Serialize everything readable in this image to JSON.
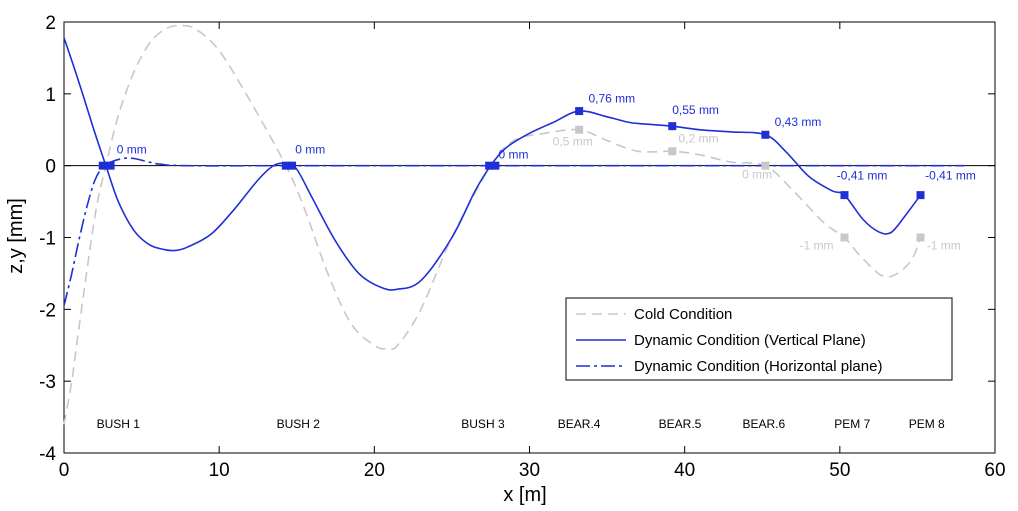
{
  "chart_data": {
    "type": "line",
    "xlabel": "x [m]",
    "ylabel": "z,y [mm]",
    "xlim": [
      0,
      60
    ],
    "ylim": [
      -4,
      2
    ],
    "xticks": [
      0,
      10,
      20,
      30,
      40,
      50,
      60
    ],
    "yticks": [
      -4,
      -3,
      -2,
      -1,
      0,
      1,
      2
    ],
    "grid": false,
    "legend_position": "bottom-right",
    "colors": {
      "cold": "#c8c8c8",
      "dynamic": "#1f2fd6",
      "zero_line": "#000000"
    },
    "series": [
      {
        "name": "Cold Condition",
        "style": "dashed",
        "color": "#c8c8c8",
        "x": [
          0,
          0.5,
          1,
          2,
          2.7,
          3.5,
          4.5,
          5.5,
          6.5,
          7.5,
          8.5,
          10,
          12,
          14.3,
          15.5,
          17,
          18.5,
          20,
          20.8,
          21.5,
          23,
          25,
          27.5,
          29,
          31,
          33.2,
          35,
          37,
          39.2,
          41,
          43,
          45.2,
          47,
          49,
          50.3,
          51.5,
          53,
          54.5,
          55.2
        ],
        "y": [
          -3.6,
          -3.0,
          -2.2,
          -0.7,
          0.0,
          0.7,
          1.3,
          1.7,
          1.9,
          1.95,
          1.9,
          1.6,
          0.9,
          0.0,
          -0.6,
          -1.5,
          -2.2,
          -2.5,
          -2.55,
          -2.5,
          -2.0,
          -1.0,
          0.0,
          0.35,
          0.45,
          0.5,
          0.35,
          0.2,
          0.2,
          0.15,
          0.05,
          0.0,
          -0.35,
          -0.8,
          -1.0,
          -1.3,
          -1.55,
          -1.35,
          -1.0
        ]
      },
      {
        "name": "Dynamic Condition (Vertical Plane)",
        "style": "solid",
        "color": "#1f2fd6",
        "x": [
          0,
          0.6,
          1.2,
          2,
          2.7,
          3.5,
          4.5,
          5.5,
          6.5,
          7.2,
          8,
          9.5,
          11,
          12.5,
          13.5,
          14.3,
          15,
          16,
          17.5,
          19,
          20.5,
          21.5,
          23,
          25,
          26.5,
          27.5,
          28.5,
          30,
          31.5,
          33.2,
          35,
          36.5,
          38,
          39.2,
          41,
          43,
          45.2,
          46.5,
          48,
          49.5,
          50.3,
          51.5,
          52.5,
          53.3,
          54.2,
          55.2
        ],
        "y": [
          1.78,
          1.4,
          1.0,
          0.45,
          0.0,
          -0.5,
          -0.9,
          -1.1,
          -1.17,
          -1.18,
          -1.13,
          -0.95,
          -0.6,
          -0.2,
          0.0,
          0.03,
          -0.05,
          -0.45,
          -1.05,
          -1.5,
          -1.7,
          -1.72,
          -1.6,
          -1.0,
          -0.35,
          0.0,
          0.25,
          0.45,
          0.6,
          0.76,
          0.68,
          0.6,
          0.57,
          0.55,
          0.5,
          0.47,
          0.43,
          0.2,
          -0.15,
          -0.35,
          -0.41,
          -0.75,
          -0.92,
          -0.93,
          -0.7,
          -0.41
        ]
      },
      {
        "name": "Dynamic Condition (Horizontal plane)",
        "style": "dash-dot",
        "color": "#1f2fd6",
        "x": [
          0,
          0.5,
          1,
          1.5,
          2,
          2.5,
          3,
          3.8,
          4.5,
          5.5,
          6.2,
          8,
          15,
          25,
          35,
          45,
          55,
          58
        ],
        "y": [
          -1.95,
          -1.5,
          -1.0,
          -0.55,
          -0.2,
          -0.02,
          0.05,
          0.1,
          0.1,
          0.05,
          0.02,
          0.0,
          0.0,
          0.0,
          0.0,
          0.0,
          0.0,
          0.0
        ]
      }
    ],
    "markers": [
      {
        "series": "dynamic",
        "x": 2.5,
        "y": 0
      },
      {
        "series": "dynamic",
        "x": 3.0,
        "y": 0
      },
      {
        "series": "dynamic",
        "x": 14.3,
        "y": 0
      },
      {
        "series": "dynamic",
        "x": 14.7,
        "y": 0
      },
      {
        "series": "dynamic",
        "x": 27.4,
        "y": 0
      },
      {
        "series": "dynamic",
        "x": 27.8,
        "y": 0
      },
      {
        "series": "dynamic",
        "x": 33.2,
        "y": 0.76
      },
      {
        "series": "dynamic",
        "x": 39.2,
        "y": 0.55
      },
      {
        "series": "dynamic",
        "x": 45.2,
        "y": 0.43
      },
      {
        "series": "dynamic",
        "x": 50.3,
        "y": -0.41
      },
      {
        "series": "dynamic",
        "x": 55.2,
        "y": -0.41
      },
      {
        "series": "cold",
        "x": 33.2,
        "y": 0.5
      },
      {
        "series": "cold",
        "x": 39.2,
        "y": 0.2
      },
      {
        "series": "cold",
        "x": 45.2,
        "y": 0.0
      },
      {
        "series": "cold",
        "x": 50.3,
        "y": -1.0
      },
      {
        "series": "cold",
        "x": 55.2,
        "y": -1.0
      }
    ],
    "annotations": [
      {
        "text": "0 mm",
        "x": 3.4,
        "y": 0.17,
        "color": "blue"
      },
      {
        "text": "0 mm",
        "x": 14.9,
        "y": 0.17,
        "color": "blue"
      },
      {
        "text": "0 mm",
        "x": 28.0,
        "y": 0.1,
        "color": "blue"
      },
      {
        "text": "0,76 mm",
        "x": 33.8,
        "y": 0.88,
        "color": "blue"
      },
      {
        "text": "0,55 mm",
        "x": 39.2,
        "y": 0.72,
        "color": "blue"
      },
      {
        "text": "0,43 mm",
        "x": 45.8,
        "y": 0.55,
        "color": "blue"
      },
      {
        "text": "-0,41 mm",
        "x": 49.8,
        "y": -0.19,
        "color": "blue"
      },
      {
        "text": "-0,41 mm",
        "x": 55.5,
        "y": -0.19,
        "color": "blue"
      },
      {
        "text": "0,5 mm",
        "x": 31.5,
        "y": 0.28,
        "color": "gray"
      },
      {
        "text": "0,2 mm",
        "x": 39.6,
        "y": 0.32,
        "color": "gray"
      },
      {
        "text": "0 mm",
        "x": 43.7,
        "y": -0.18,
        "color": "gray"
      },
      {
        "text": "-1 mm",
        "x": 47.4,
        "y": -1.17,
        "color": "gray"
      },
      {
        "text": "-1 mm",
        "x": 55.6,
        "y": -1.17,
        "color": "gray"
      }
    ],
    "supports": [
      {
        "label": "BUSH 1",
        "x": 3.5
      },
      {
        "label": "BUSH 2",
        "x": 15.1
      },
      {
        "label": "BUSH 3",
        "x": 27.0
      },
      {
        "label": "BEAR.4",
        "x": 33.2
      },
      {
        "label": "BEAR.5",
        "x": 39.7
      },
      {
        "label": "BEAR.6",
        "x": 45.1
      },
      {
        "label": "PEM 7",
        "x": 50.8
      },
      {
        "label": "PEM 8",
        "x": 55.6
      }
    ],
    "support_label_y": -3.65
  }
}
